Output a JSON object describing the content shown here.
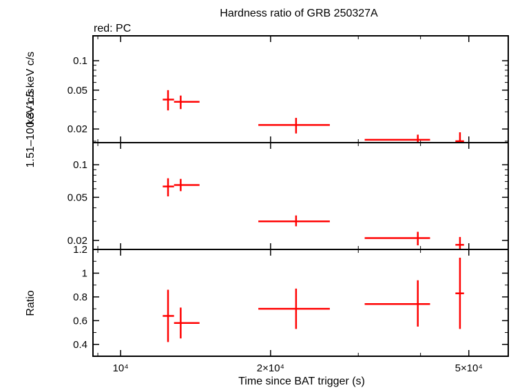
{
  "title": "Hardness ratio of GRB 250327A",
  "subtitle": "red: PC",
  "xlabel": "Time since BAT trigger (s)",
  "colors": {
    "data": "#ff0000",
    "axes": "#000000"
  },
  "chart_data": [
    {
      "type": "scatter",
      "panel": "top",
      "ylabel": "1.51–10 keV c/s",
      "yscale": "log",
      "ylim": [
        0.0145,
        0.18
      ],
      "xscale": "log",
      "xlim": [
        8800,
        60000
      ],
      "yticks": [
        {
          "v": 0.1,
          "label": "0.1"
        },
        {
          "v": 0.05,
          "label": "0.05"
        },
        {
          "v": 0.02,
          "label": "0.02"
        }
      ],
      "points": [
        {
          "x": 12450,
          "xlo": 12150,
          "xhi": 12800,
          "y": 0.04,
          "ylo": 0.031,
          "yhi": 0.05
        },
        {
          "x": 13200,
          "xlo": 12800,
          "xhi": 14400,
          "y": 0.038,
          "ylo": 0.032,
          "yhi": 0.044
        },
        {
          "x": 22500,
          "xlo": 18900,
          "xhi": 26300,
          "y": 0.022,
          "ylo": 0.018,
          "yhi": 0.026
        },
        {
          "x": 39500,
          "xlo": 30900,
          "xhi": 41800,
          "y": 0.0155,
          "ylo": 0.0135,
          "yhi": 0.0175
        },
        {
          "x": 48000,
          "xlo": 47000,
          "xhi": 48900,
          "y": 0.015,
          "ylo": 0.012,
          "yhi": 0.0185
        }
      ]
    },
    {
      "type": "scatter",
      "panel": "middle",
      "ylabel": "0.3–1.5 keV c/s",
      "yscale": "log",
      "ylim": [
        0.0165,
        0.16
      ],
      "xscale": "log",
      "xlim": [
        8800,
        60000
      ],
      "yticks": [
        {
          "v": 0.1,
          "label": "0.1"
        },
        {
          "v": 0.05,
          "label": "0.05"
        },
        {
          "v": 0.02,
          "label": "0.02"
        }
      ],
      "points": [
        {
          "x": 12450,
          "xlo": 12150,
          "xhi": 12800,
          "y": 0.063,
          "ylo": 0.051,
          "yhi": 0.075
        },
        {
          "x": 13200,
          "xlo": 12800,
          "xhi": 14400,
          "y": 0.065,
          "ylo": 0.057,
          "yhi": 0.074
        },
        {
          "x": 22500,
          "xlo": 18900,
          "xhi": 26300,
          "y": 0.03,
          "ylo": 0.027,
          "yhi": 0.034
        },
        {
          "x": 39500,
          "xlo": 30900,
          "xhi": 41800,
          "y": 0.021,
          "ylo": 0.018,
          "yhi": 0.024
        },
        {
          "x": 48000,
          "xlo": 47000,
          "xhi": 48900,
          "y": 0.0182,
          "ylo": 0.0165,
          "yhi": 0.0215
        }
      ]
    },
    {
      "type": "scatter",
      "panel": "bottom",
      "ylabel": "Ratio",
      "yscale": "linear",
      "ylim": [
        0.3,
        1.2
      ],
      "xscale": "log",
      "xlim": [
        8800,
        60000
      ],
      "yticks": [
        {
          "v": 1.2,
          "label": "1.2"
        },
        {
          "v": 1.0,
          "label": "1"
        },
        {
          "v": 0.8,
          "label": "0.8"
        },
        {
          "v": 0.6,
          "label": "0.6"
        },
        {
          "v": 0.4,
          "label": "0.4"
        }
      ],
      "xticks": [
        {
          "v": 10000,
          "label": "10⁴"
        },
        {
          "v": 20000,
          "label": "2×10⁴"
        },
        {
          "v": 50000,
          "label": "5×10⁴"
        }
      ],
      "points": [
        {
          "x": 12450,
          "xlo": 12150,
          "xhi": 12800,
          "y": 0.64,
          "ylo": 0.42,
          "yhi": 0.86
        },
        {
          "x": 13200,
          "xlo": 12800,
          "xhi": 14400,
          "y": 0.58,
          "ylo": 0.45,
          "yhi": 0.71
        },
        {
          "x": 22500,
          "xlo": 18900,
          "xhi": 26300,
          "y": 0.7,
          "ylo": 0.53,
          "yhi": 0.87
        },
        {
          "x": 39500,
          "xlo": 30900,
          "xhi": 41800,
          "y": 0.74,
          "ylo": 0.55,
          "yhi": 0.94
        },
        {
          "x": 48000,
          "xlo": 47000,
          "xhi": 48900,
          "y": 0.83,
          "ylo": 0.53,
          "yhi": 1.13
        }
      ]
    }
  ]
}
